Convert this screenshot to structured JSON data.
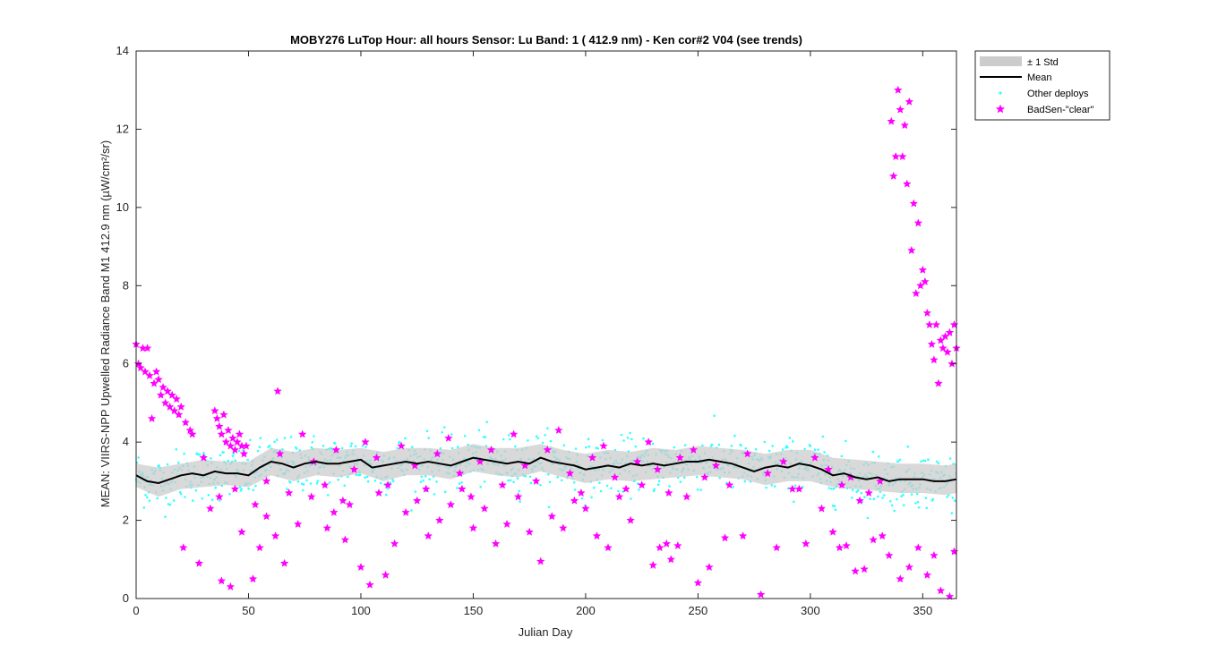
{
  "chart_data": {
    "type": "scatter",
    "title": "MOBY276   LuTop  Hour: all hours  Sensor: Lu Band: 1 ( 412.9 nm)  - Ken cor#2 V04 (see trends)",
    "xlabel": "Julian Day",
    "ylabel": "MEAN: VIIRS-NPP Upwelled Radiance Band M1 412.9 nm (µW/cm²/sr)",
    "xlim": [
      0,
      365
    ],
    "ylim": [
      0,
      14
    ],
    "x_ticks": [
      0,
      50,
      100,
      150,
      200,
      250,
      300,
      350
    ],
    "y_ticks": [
      0,
      2,
      4,
      6,
      8,
      10,
      12,
      14
    ],
    "grid": false,
    "legend_position": "outside-top-right",
    "legend": [
      "± 1 Std",
      "Mean",
      "Other deploys",
      "BadSen-\"clear\""
    ],
    "colors": {
      "std_band": "#cccccc",
      "mean": "#000000",
      "other": "#33ffff",
      "badsen": "#ff00ff",
      "axis": "#262626"
    },
    "series": [
      {
        "name": "Mean",
        "kind": "line",
        "x": [
          0,
          5,
          10,
          15,
          20,
          25,
          30,
          35,
          40,
          45,
          50,
          55,
          60,
          65,
          70,
          75,
          80,
          85,
          90,
          95,
          100,
          105,
          110,
          115,
          120,
          125,
          130,
          135,
          140,
          145,
          150,
          155,
          160,
          165,
          170,
          175,
          180,
          185,
          190,
          195,
          200,
          205,
          210,
          215,
          220,
          225,
          230,
          235,
          240,
          245,
          250,
          255,
          260,
          265,
          270,
          275,
          280,
          285,
          290,
          295,
          300,
          305,
          310,
          315,
          320,
          325,
          330,
          335,
          340,
          345,
          350,
          355,
          360,
          365
        ],
        "y": [
          3.15,
          3.0,
          2.95,
          3.05,
          3.15,
          3.2,
          3.15,
          3.25,
          3.2,
          3.2,
          3.15,
          3.35,
          3.5,
          3.45,
          3.35,
          3.45,
          3.5,
          3.45,
          3.45,
          3.5,
          3.55,
          3.35,
          3.4,
          3.45,
          3.5,
          3.45,
          3.5,
          3.45,
          3.4,
          3.5,
          3.6,
          3.55,
          3.5,
          3.45,
          3.5,
          3.45,
          3.6,
          3.5,
          3.45,
          3.4,
          3.3,
          3.35,
          3.4,
          3.35,
          3.45,
          3.4,
          3.45,
          3.4,
          3.45,
          3.5,
          3.5,
          3.55,
          3.5,
          3.45,
          3.35,
          3.25,
          3.35,
          3.4,
          3.35,
          3.45,
          3.4,
          3.3,
          3.15,
          3.2,
          3.1,
          3.05,
          3.1,
          3.0,
          3.05,
          3.05,
          3.05,
          3.0,
          3.0,
          3.05
        ]
      },
      {
        "name": "± 1 Std",
        "kind": "band",
        "x": [
          0,
          10,
          20,
          30,
          40,
          50,
          60,
          70,
          80,
          90,
          100,
          110,
          120,
          130,
          140,
          150,
          160,
          170,
          180,
          190,
          200,
          210,
          220,
          230,
          240,
          250,
          260,
          270,
          280,
          290,
          300,
          310,
          320,
          330,
          340,
          350,
          360,
          365
        ],
        "upper": [
          3.45,
          3.35,
          3.45,
          3.55,
          3.5,
          3.5,
          3.85,
          3.75,
          3.85,
          3.8,
          3.85,
          3.75,
          3.85,
          3.85,
          3.8,
          3.95,
          3.85,
          3.85,
          3.95,
          3.8,
          3.7,
          3.8,
          3.75,
          3.85,
          3.8,
          3.9,
          3.85,
          3.8,
          3.7,
          3.8,
          3.8,
          3.6,
          3.55,
          3.5,
          3.45,
          3.45,
          3.4,
          3.45
        ],
        "lower": [
          2.85,
          2.6,
          2.8,
          2.85,
          2.9,
          2.85,
          3.15,
          3.0,
          3.15,
          3.1,
          3.2,
          3.0,
          3.15,
          3.15,
          3.05,
          3.25,
          3.15,
          3.1,
          3.25,
          3.1,
          2.95,
          3.05,
          3.0,
          3.05,
          3.1,
          3.15,
          3.1,
          3.05,
          2.9,
          3.0,
          3.0,
          2.85,
          2.8,
          2.75,
          2.7,
          2.7,
          2.65,
          2.7
        ]
      },
      {
        "name": "Other deploys",
        "kind": "scatter",
        "note": "dense cloud around the mean with per-day spread",
        "x_range": [
          0,
          365
        ],
        "y_center": "mean",
        "spread_std": 0.35
      },
      {
        "name": "BadSen-\"clear\"",
        "kind": "scatter",
        "x": [
          0,
          1,
          2,
          3,
          4,
          5,
          6,
          7,
          8,
          9,
          10,
          11,
          12,
          13,
          14,
          15,
          16,
          17,
          18,
          19,
          20,
          22,
          24,
          25,
          35,
          36,
          37,
          38,
          39,
          40,
          41,
          42,
          43,
          44,
          45,
          46,
          47,
          48,
          63,
          336,
          337,
          338,
          339,
          340,
          341,
          342,
          343,
          344,
          345,
          346,
          347,
          348,
          349,
          350,
          351,
          352,
          353,
          354,
          355,
          356,
          357,
          358,
          359,
          360,
          361,
          362,
          363,
          364,
          365,
          21,
          28,
          33,
          38,
          42,
          47,
          52,
          55,
          58,
          62,
          66,
          72,
          78,
          85,
          88,
          93,
          95,
          100,
          104,
          108,
          111,
          115,
          120,
          125,
          130,
          135,
          140,
          145,
          150,
          155,
          160,
          165,
          170,
          175,
          180,
          185,
          190,
          195,
          200,
          205,
          210,
          215,
          220,
          225,
          230,
          233,
          236,
          238,
          241,
          245,
          250,
          255,
          262,
          270,
          278,
          285,
          292,
          298,
          305,
          310,
          313,
          316,
          320,
          324,
          328,
          332,
          335,
          340,
          344,
          348,
          352,
          355,
          358,
          362,
          364,
          30,
          37,
          44,
          49,
          53,
          58,
          64,
          68,
          74,
          79,
          84,
          89,
          92,
          97,
          102,
          107,
          112,
          118,
          124,
          129,
          134,
          139,
          144,
          149,
          153,
          158,
          163,
          168,
          173,
          178,
          183,
          188,
          193,
          198,
          203,
          208,
          213,
          218,
          223,
          228,
          232,
          237,
          242,
          248,
          253,
          258,
          264,
          272,
          281,
          288,
          295,
          302,
          308,
          314,
          318,
          322,
          326,
          331
        ],
        "y": [
          6.5,
          6.0,
          5.9,
          6.4,
          5.8,
          6.4,
          5.7,
          4.6,
          5.5,
          5.8,
          5.6,
          5.2,
          5.4,
          5.0,
          5.3,
          4.9,
          5.2,
          4.8,
          5.1,
          4.7,
          4.9,
          4.5,
          4.3,
          4.2,
          4.8,
          4.6,
          4.4,
          4.2,
          4.7,
          4.0,
          4.3,
          3.9,
          4.1,
          3.8,
          4.0,
          4.2,
          3.9,
          3.7,
          5.3,
          12.2,
          10.8,
          11.3,
          13.0,
          12.5,
          11.3,
          12.1,
          10.6,
          12.7,
          8.9,
          10.1,
          7.8,
          9.6,
          8.0,
          8.4,
          8.1,
          7.3,
          7.0,
          6.5,
          6.1,
          7.0,
          5.5,
          6.6,
          6.4,
          6.7,
          6.3,
          6.8,
          6.0,
          7.0,
          6.4,
          1.3,
          0.9,
          2.3,
          0.45,
          0.3,
          1.7,
          0.5,
          1.3,
          2.1,
          1.6,
          0.9,
          1.9,
          2.6,
          1.8,
          2.2,
          1.5,
          2.4,
          0.8,
          0.35,
          2.7,
          0.6,
          1.4,
          2.2,
          2.5,
          1.6,
          2.0,
          2.4,
          2.8,
          1.8,
          2.3,
          1.4,
          1.9,
          2.6,
          1.7,
          0.95,
          2.1,
          1.8,
          2.5,
          2.3,
          1.6,
          1.3,
          2.6,
          2.0,
          2.9,
          0.85,
          1.3,
          1.4,
          1.0,
          1.35,
          2.6,
          0.4,
          0.8,
          1.55,
          1.6,
          0.1,
          1.3,
          2.8,
          1.4,
          2.3,
          1.7,
          1.3,
          1.35,
          0.7,
          0.75,
          1.5,
          1.6,
          1.1,
          0.5,
          0.8,
          1.3,
          0.6,
          1.1,
          0.2,
          0.05,
          1.2,
          3.6,
          2.6,
          2.8,
          3.9,
          2.4,
          3.0,
          3.7,
          2.7,
          4.2,
          3.5,
          2.9,
          3.8,
          2.5,
          3.3,
          4.0,
          3.6,
          2.9,
          3.9,
          3.4,
          2.8,
          3.7,
          4.1,
          3.2,
          2.6,
          3.5,
          3.8,
          2.9,
          4.2,
          3.4,
          3.0,
          3.8,
          4.3,
          3.2,
          2.7,
          3.6,
          3.9,
          3.1,
          2.8,
          3.5,
          4.0,
          3.3,
          2.7,
          3.6,
          3.8,
          3.1,
          3.4,
          2.9,
          3.7,
          3.2,
          3.5,
          2.8,
          3.6,
          3.3,
          2.9,
          3.1,
          2.5,
          2.7,
          3.0
        ]
      }
    ]
  }
}
